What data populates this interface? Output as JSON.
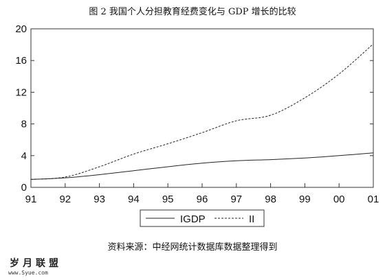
{
  "chart_data": {
    "type": "line",
    "title": "图 2    我国个人分担教育经费变化与 GDP 增长的比较",
    "xlabel": "",
    "ylabel": "",
    "categories": [
      "91",
      "92",
      "93",
      "94",
      "95",
      "96",
      "97",
      "98",
      "99",
      "00",
      "01"
    ],
    "ylim": [
      0,
      20
    ],
    "yticks": [
      0,
      4,
      8,
      12,
      16,
      20
    ],
    "grid": false,
    "legend_position": "bottom-center",
    "series": [
      {
        "name": "IGDP",
        "style": "solid",
        "color": "#222222",
        "values": [
          1.0,
          1.2,
          1.6,
          2.1,
          2.6,
          3.05,
          3.35,
          3.5,
          3.7,
          4.0,
          4.35
        ]
      },
      {
        "name": "II",
        "style": "dashed",
        "color": "#222222",
        "values": [
          1.0,
          1.3,
          2.6,
          4.2,
          5.5,
          6.9,
          8.4,
          9.1,
          11.3,
          14.3,
          18.1
        ]
      }
    ]
  },
  "source_note": "资料来源：中经网统计数据库数据整理得到",
  "watermark": {
    "name": "岁月联盟",
    "url": "www.Syue.com"
  }
}
